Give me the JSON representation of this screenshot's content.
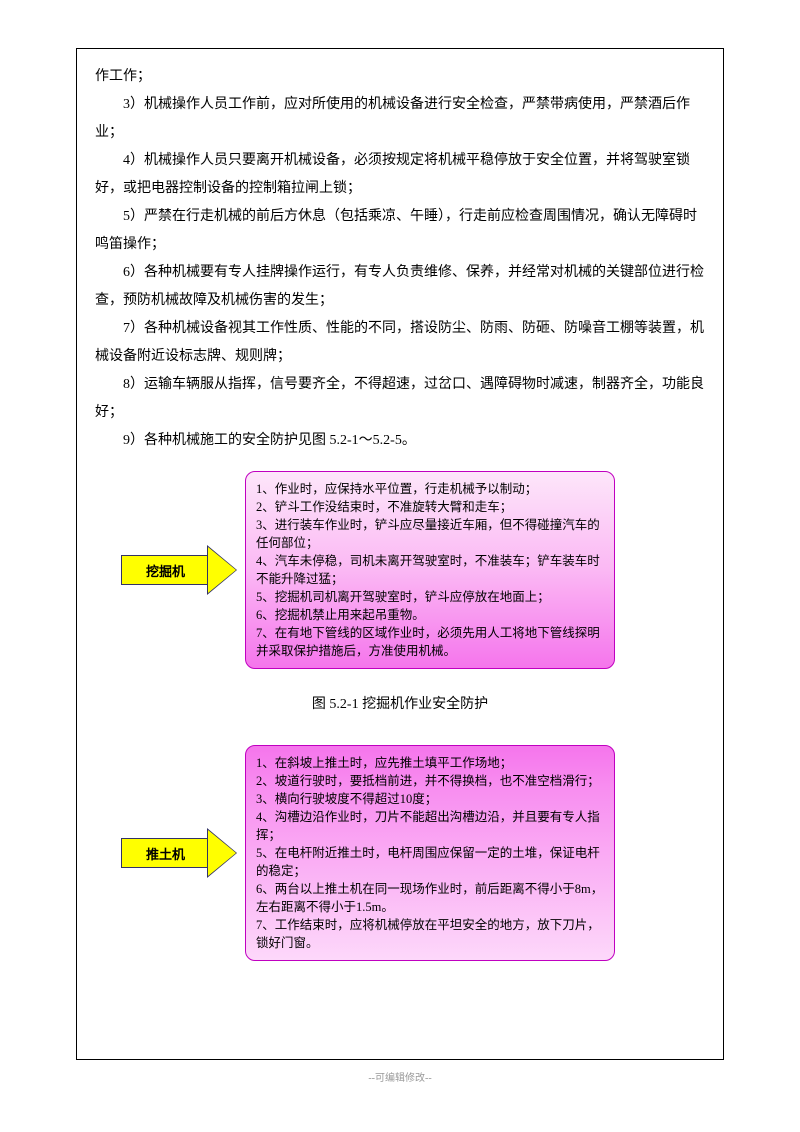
{
  "paragraphs": {
    "p0": "作工作；",
    "p1": "3）机械操作人员工作前，应对所使用的机械设备进行安全检查，严禁带病使用，严禁酒后作业；",
    "p2": "4）机械操作人员只要离开机械设备，必须按规定将机械平稳停放于安全位置，并将驾驶室锁好，或把电器控制设备的控制箱拉闸上锁；",
    "p3": "5）严禁在行走机械的前后方休息（包括乘凉、午睡），行走前应检查周围情况，确认无障碍时鸣笛操作；",
    "p4": "6）各种机械要有专人挂牌操作运行，有专人负责维修、保养，并经常对机械的关键部位进行检查，预防机械故障及机械伤害的发生；",
    "p5": "7）各种机械设备视其工作性质、性能的不同，搭设防尘、防雨、防砸、防噪音工棚等装置，机械设备附近设标志牌、规则牌；",
    "p6": "8）运输车辆服从指挥，信号要齐全，不得超速，过岔口、遇障碍物时减速，制器齐全，功能良好；",
    "p7": "9）各种机械施工的安全防护见图 5.2-1～5.2-5。"
  },
  "figure1": {
    "arrow_label": "挖掘机",
    "lines": {
      "l1": "1、作业时，应保持水平位置，行走机械予以制动；",
      "l2": "2、铲斗工作没结束时，不准旋转大臂和走车；",
      "l3": "3、进行装车作业时，铲斗应尽量接近车厢，但不得碰撞汽车的任何部位；",
      "l4": "4、汽车未停稳，司机未离开驾驶室时，不准装车；铲车装车时不能升降过猛；",
      "l5": "5、挖掘机司机离开驾驶室时，铲斗应停放在地面上；",
      "l6": "6、挖掘机禁止用来起吊重物。",
      "l7": "7、在有地下管线的区域作业时，必须先用人工将地下管线探明并采取保护措施后，方准使用机械。"
    },
    "caption": "图 5.2-1  挖掘机作业安全防护"
  },
  "figure2": {
    "arrow_label": "推土机",
    "lines": {
      "l1": "1、在斜坡上推土时，应先推土填平工作场地；",
      "l2": "2、坡道行驶时，要抵档前进，并不得换档，也不准空档滑行；",
      "l3": "3、横向行驶坡度不得超过10度；",
      "l4": "4、沟槽边沿作业时，刀片不能超出沟槽边沿，并且要有专人指挥；",
      "l5": "5、在电杆附近推土时，电杆周围应保留一定的土堆，保证电杆的稳定；",
      "l6": "6、两台以上推土机在同一现场作业时，前后距离不得小于8m，左右距离不得小于1.5m。",
      "l7": "7、工作结束时，应将机械停放在平坦安全的地方，放下刀片，锁好门窗。"
    }
  },
  "footer": "--可编辑修改--"
}
